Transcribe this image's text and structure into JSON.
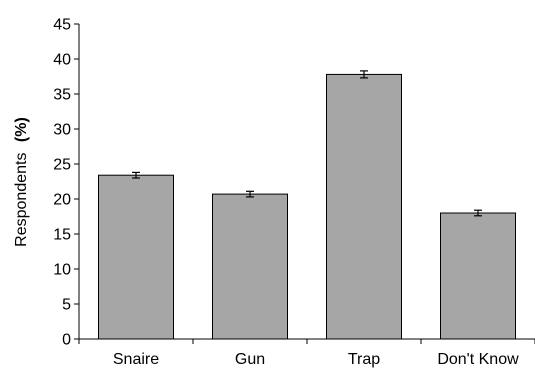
{
  "chart_data": {
    "type": "bar",
    "categories": [
      "Snaire",
      "Gun",
      "Trap",
      "Don't Know"
    ],
    "values": [
      23.4,
      20.7,
      37.8,
      18.0
    ],
    "errors": [
      0.4,
      0.4,
      0.5,
      0.4
    ],
    "ylabel": "Respondents",
    "ylabel_unit": "(%)",
    "ylim": [
      0,
      45
    ],
    "yticks": [
      0,
      5,
      10,
      15,
      20,
      25,
      30,
      35,
      40,
      45
    ],
    "grid": false,
    "bar_color": "#a6a6a6",
    "bar_edge_color": "#000000"
  }
}
